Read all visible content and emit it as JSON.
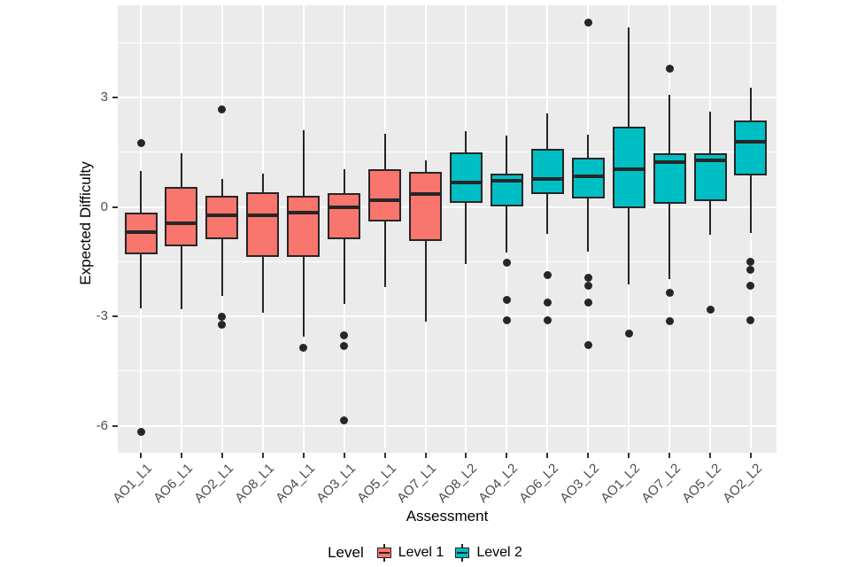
{
  "colors": {
    "level1": "#F8766D",
    "level2": "#00BFC4",
    "panel_bg": "#EBEBEB",
    "gridline": "#FFFFFF",
    "box_outline": "#262626",
    "outlier_dot": "#262626",
    "tick_mark": "#333333",
    "tick_label": "#4D4D4D",
    "axis_title": "#000000"
  },
  "chart_data": {
    "type": "boxplot",
    "title": "",
    "xlabel": "Assessment",
    "ylabel": "Expected Difficulty",
    "ylim": [
      -6.7,
      5.6
    ],
    "y_ticks": [
      3,
      0,
      -3,
      -6
    ],
    "y_tick_labels": [
      "3",
      "0",
      "-3",
      "-6"
    ],
    "y_minor_ticks": [
      4.5,
      1.5,
      -1.5,
      -4.5
    ],
    "grid": "on",
    "legend": {
      "title": "Level",
      "position": "bottom",
      "entries": [
        {
          "label": "Level 1",
          "color_key": "level1"
        },
        {
          "label": "Level 2",
          "color_key": "level2"
        }
      ]
    },
    "series": [
      {
        "label": "AO1_L1",
        "level": "Level 1",
        "whisker_low": -2.79,
        "q1": -1.31,
        "median": -0.68,
        "q3": -0.15,
        "whisker_high": 0.99,
        "outliers": [
          1.74,
          -6.17
        ]
      },
      {
        "label": "AO6_L1",
        "level": "Level 1",
        "whisker_low": -2.81,
        "q1": -1.07,
        "median": -0.46,
        "q3": 0.55,
        "whisker_high": 1.48,
        "outliers": []
      },
      {
        "label": "AO2_L1",
        "level": "Level 1",
        "whisker_low": -2.45,
        "q1": -0.89,
        "median": -0.22,
        "q3": 0.3,
        "whisker_high": 0.77,
        "outliers": [
          2.66,
          -3.0,
          -3.24
        ]
      },
      {
        "label": "AO8_L1",
        "level": "Level 1",
        "whisker_low": -2.91,
        "q1": -1.36,
        "median": -0.22,
        "q3": 0.4,
        "whisker_high": 0.9,
        "outliers": []
      },
      {
        "label": "AO4_L1",
        "level": "Level 1",
        "whisker_low": -3.55,
        "q1": -1.38,
        "median": -0.16,
        "q3": 0.3,
        "whisker_high": 2.11,
        "outliers": [
          -3.87
        ]
      },
      {
        "label": "AO3_L1",
        "level": "Level 1",
        "whisker_low": -2.66,
        "q1": -0.89,
        "median": 0.0,
        "q3": 0.37,
        "whisker_high": 1.04,
        "outliers": [
          -3.52,
          -3.8,
          -5.86
        ]
      },
      {
        "label": "AO5_L1",
        "level": "Level 1",
        "whisker_low": -2.2,
        "q1": -0.41,
        "median": 0.18,
        "q3": 1.02,
        "whisker_high": 2.01,
        "outliers": []
      },
      {
        "label": "AO7_L1",
        "level": "Level 1",
        "whisker_low": -3.14,
        "q1": -0.93,
        "median": 0.34,
        "q3": 0.97,
        "whisker_high": 1.28,
        "outliers": []
      },
      {
        "label": "AO8_L2",
        "level": "Level 2",
        "whisker_low": -1.56,
        "q1": 0.12,
        "median": 0.66,
        "q3": 1.5,
        "whisker_high": 2.08,
        "outliers": []
      },
      {
        "label": "AO4_L2",
        "level": "Level 2",
        "whisker_low": -1.25,
        "q1": 0.0,
        "median": 0.71,
        "q3": 0.9,
        "whisker_high": 1.95,
        "outliers": [
          -1.54,
          -2.54,
          -3.1
        ]
      },
      {
        "label": "AO6_L2",
        "level": "Level 2",
        "whisker_low": -0.73,
        "q1": 0.34,
        "median": 0.76,
        "q3": 1.58,
        "whisker_high": 2.55,
        "outliers": [
          -1.86,
          -2.61,
          -3.1
        ]
      },
      {
        "label": "AO3_L2",
        "level": "Level 2",
        "whisker_low": -1.23,
        "q1": 0.23,
        "median": 0.84,
        "q3": 1.34,
        "whisker_high": 1.99,
        "outliers": [
          5.05,
          -1.93,
          -2.17,
          -2.63,
          -3.79
        ]
      },
      {
        "label": "AO1_L2",
        "level": "Level 2",
        "whisker_low": -2.13,
        "q1": -0.04,
        "median": 1.03,
        "q3": 2.2,
        "whisker_high": 4.92,
        "outliers": [
          -3.46
        ]
      },
      {
        "label": "AO7_L2",
        "level": "Level 2",
        "whisker_low": -1.98,
        "q1": 0.08,
        "median": 1.23,
        "q3": 1.46,
        "whisker_high": 3.06,
        "outliers": [
          3.78,
          -2.36,
          -3.14
        ]
      },
      {
        "label": "AO5_L2",
        "level": "Level 2",
        "whisker_low": -0.77,
        "q1": 0.16,
        "median": 1.28,
        "q3": 1.46,
        "whisker_high": 2.61,
        "outliers": [
          -2.82
        ]
      },
      {
        "label": "AO2_L2",
        "level": "Level 2",
        "whisker_low": -0.72,
        "q1": 0.86,
        "median": 1.78,
        "q3": 2.36,
        "whisker_high": 3.27,
        "outliers": [
          -1.51,
          -1.73,
          -2.17,
          -3.11
        ]
      }
    ]
  }
}
